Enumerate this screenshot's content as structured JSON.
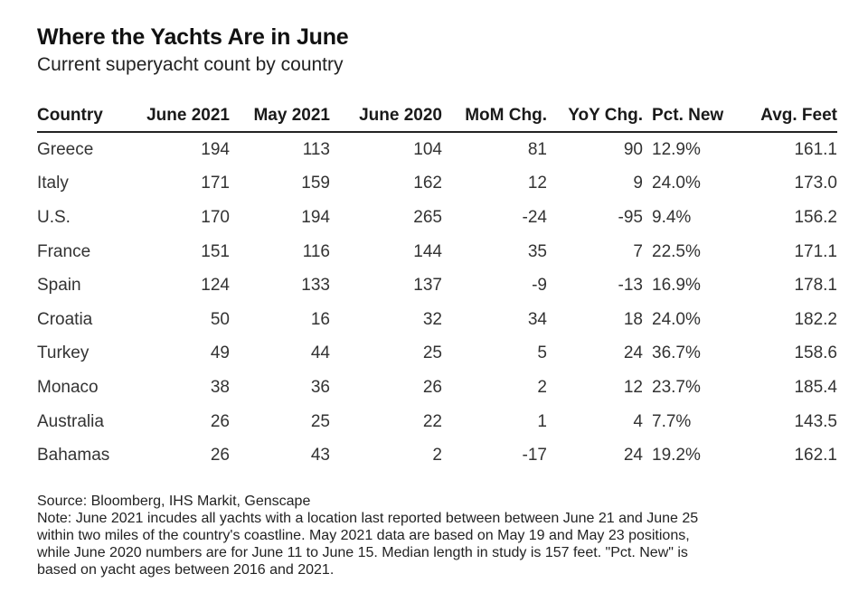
{
  "header": {
    "title": "Where the Yachts Are in June",
    "subtitle": "Current superyacht count by country"
  },
  "chart_data": {
    "type": "table",
    "title": "Where the Yachts Are in June",
    "subtitle": "Current superyacht count by country",
    "columns": [
      "Country",
      "June 2021",
      "May 2021",
      "June 2020",
      "MoM Chg.",
      "YoY Chg.",
      "Pct. New",
      "Avg. Feet"
    ],
    "rows": [
      [
        "Greece",
        "194",
        "113",
        "104",
        "81",
        "90",
        "12.9%",
        "161.1"
      ],
      [
        "Italy",
        "171",
        "159",
        "162",
        "12",
        "9",
        "24.0%",
        "173.0"
      ],
      [
        "U.S.",
        "170",
        "194",
        "265",
        "-24",
        "-95",
        "9.4%",
        "156.2"
      ],
      [
        "France",
        "151",
        "116",
        "144",
        "35",
        "7",
        "22.5%",
        "171.1"
      ],
      [
        "Spain",
        "124",
        "133",
        "137",
        "-9",
        "-13",
        "16.9%",
        "178.1"
      ],
      [
        "Croatia",
        "50",
        "16",
        "32",
        "34",
        "18",
        "24.0%",
        "182.2"
      ],
      [
        "Turkey",
        "49",
        "44",
        "25",
        "5",
        "24",
        "36.7%",
        "158.6"
      ],
      [
        "Monaco",
        "38",
        "36",
        "26",
        "2",
        "12",
        "23.7%",
        "185.4"
      ],
      [
        "Australia",
        "26",
        "25",
        "22",
        "1",
        "4",
        "7.7%",
        "143.5"
      ],
      [
        "Bahamas",
        "26",
        "43",
        "2",
        "-17",
        "24",
        "19.2%",
        "162.1"
      ]
    ]
  },
  "footer": {
    "source": "Source: Bloomberg, IHS Markit, Genscape",
    "note_lines": [
      "Note: June 2021 incudes all yachts with a location last reported between between June 21 and June 25",
      "within two miles of the country's coastline. May 2021 data are based on May 19 and May 23 positions,",
      "while June 2020 numbers are for June 11 to June 15. Median length in study is 157 feet. \"Pct. New\" is",
      "based on yacht ages between 2016 and 2021."
    ]
  }
}
